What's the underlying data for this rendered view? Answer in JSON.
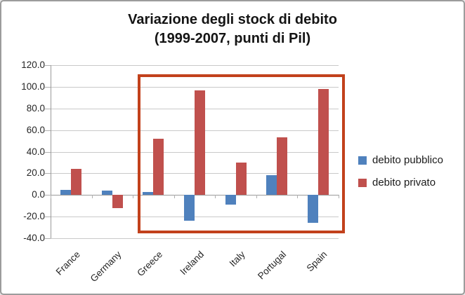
{
  "window": {
    "background": "#ffffff",
    "border_color": "#9c9c9c"
  },
  "chart_data": {
    "type": "bar",
    "title": "Variazione degli stock di debito",
    "subtitle": "(1999-2007, punti di Pil)",
    "categories": [
      "France",
      "Germany",
      "Greece",
      "Ireland",
      "Italy",
      "Portugal",
      "Spain"
    ],
    "series": [
      {
        "name": "debito pubblico",
        "color": "#4F81BD",
        "values": [
          5,
          4,
          3,
          -24,
          -9,
          18,
          -26
        ]
      },
      {
        "name": "debito privato",
        "color": "#C0504D",
        "values": [
          24,
          -12,
          52,
          97,
          30,
          53,
          98
        ]
      }
    ],
    "xlabel": "",
    "ylabel": "",
    "ylim": [
      -40,
      120
    ],
    "ytick_step": 20,
    "ytick_labels": [
      "120.0",
      "100.0",
      "80.0",
      "60.0",
      "40.0",
      "20.0",
      "0.0",
      "-20.0",
      "-40.0"
    ],
    "grid": true,
    "legend_position": "right",
    "annotation": {
      "type": "highlight-rect",
      "from_category": "Greece",
      "to_category": "Spain",
      "value_top": 111.5,
      "value_bottom": -35.5,
      "color": "#C2411C",
      "stroke_width": 4
    },
    "style_colors": {
      "gridline": "#c9c9c9",
      "axis": "#9a9a9a",
      "text": "#262626"
    }
  }
}
